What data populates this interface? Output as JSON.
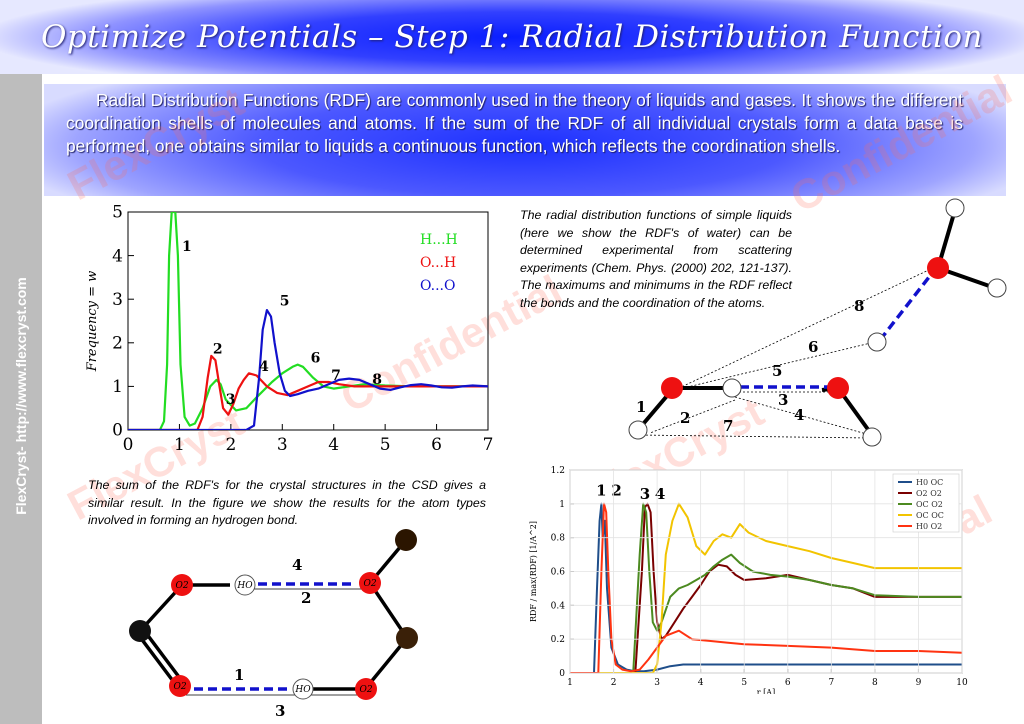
{
  "title": "Optimize Potentials – Step 1: Radial Distribution Function",
  "vertical_label": "FlexCryst- http://www.flexcryst.com",
  "intro": "Radial Distribution Functions (RDF) are commonly used in the theory of liquids and gases. It shows the different coordination shells of molecules and atoms. If the sum of the RDF of all individual crystals form a data base is performed, one obtains similar to liquids a continuous function, which reflects the coordination shells.",
  "caption_right": "The radial distribution functions of simple liquids (here we show the RDF's of water) can be determined experimental from scattering experiments (Chem. Phys. (2000) 202, 121-137). The maximums and minimums in the RDF reflect the bonds and the coordination of the atoms.",
  "caption_left": "The sum of the RDF's for the crystal structures in the CSD gives a similar result. In the figure we show the results for the atom types involved in forming an hydrogen bond.",
  "watermark": [
    "FlexCryst",
    "Confidential"
  ],
  "colors": {
    "green": "#22dd22",
    "red": "#ee1111",
    "blue": "#1111cc",
    "dark_red": "#7a0000",
    "olive": "#4c8a20",
    "yellow": "#f2c400",
    "orange": "#ff3311",
    "navy": "#1f4e8a"
  },
  "chart_data": [
    {
      "type": "line",
      "xlim": [
        0,
        7
      ],
      "ylim": [
        0,
        5
      ],
      "xticks": [
        "0",
        "1",
        "2",
        "3",
        "4",
        "5",
        "6",
        "7"
      ],
      "yticks": [
        "0",
        "1",
        "2",
        "3",
        "4",
        "5"
      ],
      "ylabel": "Frequency = w",
      "series": [
        {
          "name": "H...H",
          "color": "#22dd22",
          "x": [
            0,
            0.62,
            0.7,
            0.76,
            0.8,
            0.85,
            0.92,
            0.97,
            1.02,
            1.1,
            1.2,
            1.3,
            1.45,
            1.6,
            1.72,
            1.8,
            1.9,
            2.1,
            2.3,
            2.5,
            2.8,
            3.0,
            3.2,
            3.3,
            3.4,
            3.6,
            3.8,
            4.0,
            4.3,
            4.6,
            5.0,
            5.5,
            6.0,
            7.0
          ],
          "y": [
            0,
            0,
            0.2,
            1.5,
            4.0,
            5.0,
            5.0,
            4.0,
            1.5,
            0.3,
            0.1,
            0.15,
            0.5,
            1.0,
            1.15,
            1.05,
            0.7,
            0.45,
            0.5,
            0.75,
            1.1,
            1.3,
            1.45,
            1.5,
            1.45,
            1.2,
            1.0,
            0.95,
            1.0,
            1.05,
            1.02,
            1.0,
            1.0,
            1.0
          ]
        },
        {
          "name": "O...H",
          "color": "#ee1111",
          "x": [
            0,
            1.35,
            1.45,
            1.55,
            1.62,
            1.7,
            1.78,
            1.85,
            1.95,
            2.05,
            2.15,
            2.25,
            2.35,
            2.5,
            2.7,
            2.9,
            3.1,
            3.3,
            3.5,
            3.7,
            3.9,
            4.1,
            4.4,
            4.8,
            5.2,
            5.6,
            6.0,
            7.0
          ],
          "y": [
            0,
            0,
            0.3,
            1.2,
            1.7,
            1.6,
            1.0,
            0.5,
            0.35,
            0.6,
            0.95,
            1.15,
            1.3,
            1.25,
            1.0,
            0.85,
            0.8,
            0.9,
            1.0,
            1.1,
            1.1,
            1.05,
            1.0,
            1.0,
            1.0,
            1.0,
            1.0,
            1.0
          ]
        },
        {
          "name": "O...O",
          "color": "#1111cc",
          "x": [
            0,
            2.3,
            2.45,
            2.55,
            2.62,
            2.7,
            2.78,
            2.85,
            2.95,
            3.05,
            3.15,
            3.3,
            3.5,
            3.7,
            3.9,
            4.1,
            4.3,
            4.5,
            4.7,
            4.9,
            5.1,
            5.3,
            5.5,
            5.7,
            5.9,
            6.1,
            6.3,
            6.5,
            6.7,
            7.0
          ],
          "y": [
            0,
            0,
            0.1,
            1.2,
            2.3,
            2.75,
            2.6,
            2.0,
            1.3,
            0.9,
            0.78,
            0.82,
            0.9,
            0.95,
            1.05,
            1.15,
            1.18,
            1.15,
            1.05,
            0.95,
            0.92,
            0.98,
            1.03,
            1.05,
            1.02,
            0.98,
            0.97,
            1.0,
            1.02,
            1.0
          ]
        }
      ],
      "annotations": [
        {
          "text": "1",
          "x": 1.05,
          "y": 4.1
        },
        {
          "text": "2",
          "x": 1.65,
          "y": 1.75
        },
        {
          "text": "3",
          "x": 1.9,
          "y": 0.6
        },
        {
          "text": "4",
          "x": 2.55,
          "y": 1.35
        },
        {
          "text": "5",
          "x": 2.95,
          "y": 2.85
        },
        {
          "text": "6",
          "x": 3.55,
          "y": 1.55
        },
        {
          "text": "7",
          "x": 3.95,
          "y": 1.15
        },
        {
          "text": "8",
          "x": 4.75,
          "y": 1.05
        }
      ]
    },
    {
      "type": "line",
      "xlim": [
        1,
        10
      ],
      "ylim": [
        0,
        1.2
      ],
      "xticks": [
        "1",
        "2",
        "3",
        "4",
        "5",
        "6",
        "7",
        "8",
        "9",
        "10"
      ],
      "yticks": [
        "0",
        "0.2",
        "0.4",
        "0.6",
        "0.8",
        "1",
        "1.2"
      ],
      "xlabel": "r [A]",
      "ylabel": "RDF / max(RDF) [1/A^2]",
      "series": [
        {
          "name": "H0 OC",
          "color": "#1f4e8a",
          "x": [
            1,
            1.55,
            1.62,
            1.68,
            1.72,
            1.75,
            1.8,
            1.85,
            1.95,
            2.1,
            2.3,
            2.5,
            2.7,
            3.0,
            3.3,
            3.6,
            4,
            4.5,
            5,
            6,
            7,
            8,
            9,
            10
          ],
          "y": [
            0,
            0,
            0.5,
            0.9,
            1.0,
            0.8,
            0.9,
            0.5,
            0.15,
            0.05,
            0.02,
            0.01,
            0.01,
            0.02,
            0.04,
            0.05,
            0.05,
            0.05,
            0.05,
            0.05,
            0.05,
            0.05,
            0.05,
            0.05
          ]
        },
        {
          "name": "O2 O2",
          "color": "#7a0000",
          "x": [
            1,
            2.5,
            2.65,
            2.72,
            2.78,
            2.85,
            2.92,
            3.0,
            3.1,
            3.2,
            3.4,
            3.6,
            3.8,
            4.0,
            4.2,
            4.4,
            4.6,
            4.8,
            5.0,
            5.5,
            6.0,
            6.5,
            7.0,
            7.5,
            8.0,
            8.5,
            9,
            10
          ],
          "y": [
            0,
            0,
            0.6,
            0.98,
            1.0,
            0.95,
            0.6,
            0.3,
            0.2,
            0.22,
            0.3,
            0.38,
            0.45,
            0.52,
            0.6,
            0.64,
            0.63,
            0.58,
            0.55,
            0.56,
            0.58,
            0.55,
            0.52,
            0.5,
            0.45,
            0.45,
            0.45,
            0.45
          ]
        },
        {
          "name": "OC O2",
          "color": "#4c8a20",
          "x": [
            1,
            2.45,
            2.6,
            2.68,
            2.75,
            2.82,
            2.9,
            3.0,
            3.1,
            3.3,
            3.5,
            3.7,
            3.9,
            4.1,
            4.3,
            4.5,
            4.7,
            4.9,
            5.2,
            5.6,
            6.0,
            6.5,
            7.0,
            7.5,
            8.0,
            9,
            10
          ],
          "y": [
            0,
            0,
            0.7,
            1.0,
            0.95,
            0.6,
            0.3,
            0.25,
            0.3,
            0.45,
            0.5,
            0.52,
            0.55,
            0.58,
            0.63,
            0.67,
            0.7,
            0.65,
            0.6,
            0.58,
            0.57,
            0.55,
            0.52,
            0.5,
            0.46,
            0.45,
            0.45
          ]
        },
        {
          "name": "OC OC",
          "color": "#f2c400",
          "x": [
            1,
            2.9,
            3.0,
            3.1,
            3.2,
            3.35,
            3.5,
            3.7,
            3.9,
            4.1,
            4.3,
            4.5,
            4.7,
            4.9,
            5.1,
            5.5,
            6.0,
            6.5,
            7.0,
            7.5,
            8.0,
            8.5,
            9,
            10
          ],
          "y": [
            0,
            0,
            0.05,
            0.3,
            0.7,
            0.9,
            1.0,
            0.92,
            0.75,
            0.7,
            0.78,
            0.82,
            0.8,
            0.88,
            0.83,
            0.78,
            0.75,
            0.72,
            0.68,
            0.65,
            0.62,
            0.62,
            0.62,
            0.62
          ]
        },
        {
          "name": "H0 O2",
          "color": "#ff3311",
          "x": [
            1,
            1.65,
            1.72,
            1.78,
            1.83,
            1.88,
            1.95,
            2.05,
            2.2,
            2.4,
            2.6,
            2.8,
            3.0,
            3.2,
            3.5,
            3.8,
            4.2,
            4.6,
            5.0,
            6,
            7,
            8,
            9,
            10
          ],
          "y": [
            0,
            0,
            0.6,
            1.0,
            0.95,
            0.6,
            0.2,
            0.05,
            0.02,
            0.01,
            0.02,
            0.08,
            0.15,
            0.22,
            0.25,
            0.2,
            0.19,
            0.18,
            0.17,
            0.16,
            0.15,
            0.13,
            0.13,
            0.12
          ]
        }
      ],
      "annotations": [
        {
          "text": "1",
          "x": 1.6,
          "y": 1.05
        },
        {
          "text": "2",
          "x": 1.95,
          "y": 1.05
        },
        {
          "text": "3",
          "x": 2.6,
          "y": 1.03
        },
        {
          "text": "4",
          "x": 2.95,
          "y": 1.03
        }
      ]
    }
  ],
  "diagram_water": {
    "labels": [
      "8",
      "6",
      "5",
      "3",
      "4",
      "1",
      "2",
      "7"
    ]
  },
  "diagram_ring": {
    "atoms": [
      "O2",
      "HO",
      "O2",
      "O2",
      "HO",
      "O2"
    ],
    "bond_labels": [
      "4",
      "2",
      "1",
      "3"
    ]
  }
}
